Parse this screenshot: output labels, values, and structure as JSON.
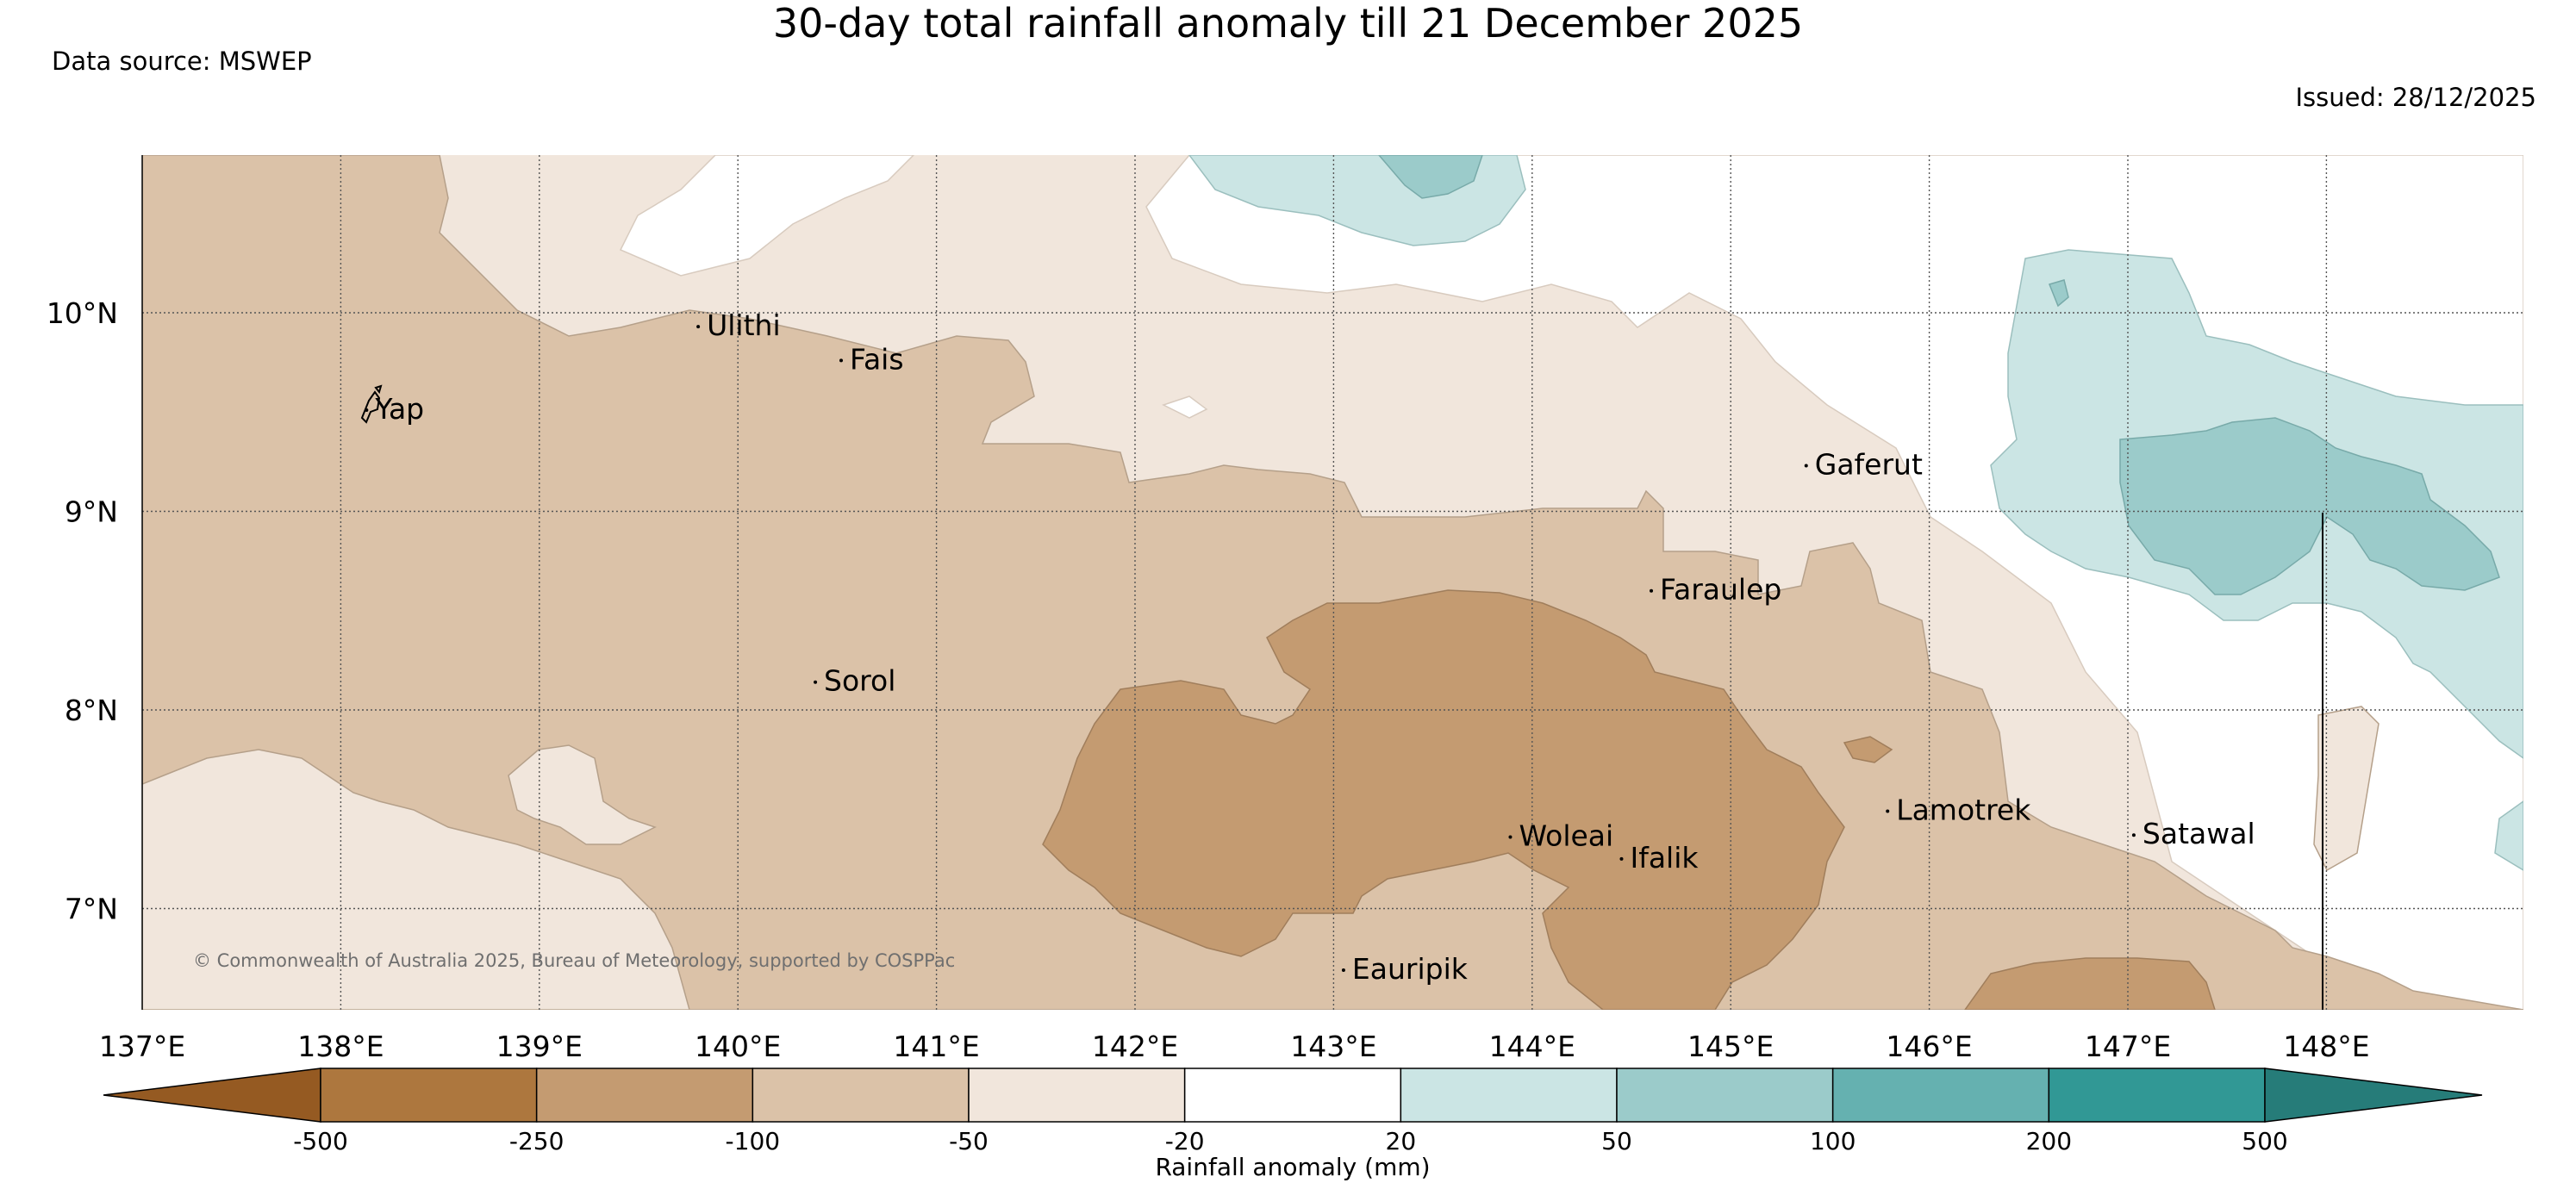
{
  "title": "30-day total rainfall anomaly till 21 December 2025",
  "data_source": "Data source: MSWEP",
  "issued": "Issued: 28/12/2025",
  "copyright": "© Commonwealth of Australia 2025, Bureau of Meteorology, supported by COSPPac",
  "lon_labels": [
    "137°E",
    "138°E",
    "139°E",
    "140°E",
    "141°E",
    "142°E",
    "143°E",
    "144°E",
    "145°E",
    "146°E",
    "147°E",
    "148°E"
  ],
  "lat_labels": [
    "10°N",
    "9°N",
    "8°N",
    "7°N"
  ],
  "places": [
    {
      "name": "Ulithi",
      "lon": 139.8,
      "lat": 9.93
    },
    {
      "name": "Fais",
      "lon": 140.52,
      "lat": 9.76
    },
    {
      "name": "Yap",
      "lon": 138.13,
      "lat": 9.51
    },
    {
      "name": "Gaferut",
      "lon": 145.38,
      "lat": 9.23
    },
    {
      "name": "Faraulep",
      "lon": 144.6,
      "lat": 8.6
    },
    {
      "name": "Sorol",
      "lon": 140.39,
      "lat": 8.14
    },
    {
      "name": "Woleai",
      "lon": 143.89,
      "lat": 7.36
    },
    {
      "name": "Ifalik",
      "lon": 144.45,
      "lat": 7.25
    },
    {
      "name": "Lamotrek",
      "lon": 145.79,
      "lat": 7.49
    },
    {
      "name": "Satawal",
      "lon": 147.03,
      "lat": 7.37
    },
    {
      "name": "Eauripik",
      "lon": 143.05,
      "lat": 6.69
    }
  ],
  "colorbar": {
    "label": "Rainfall anomaly (mm)",
    "tick_labels": [
      "-500",
      "-250",
      "-100",
      "-50",
      "-20",
      "20",
      "50",
      "100",
      "200",
      "500"
    ],
    "bins": [
      {
        "color": "#955a22"
      },
      {
        "color": "#ad773e"
      },
      {
        "color": "#c49b71"
      },
      {
        "color": "#dbc2a8"
      },
      {
        "color": "#f1e6dc"
      },
      {
        "color": "#ffffff"
      },
      {
        "color": "#cbe5e4"
      },
      {
        "color": "#9bcbca"
      },
      {
        "color": "#65b1b0"
      },
      {
        "color": "#319895"
      },
      {
        "color": "#267c79"
      }
    ]
  }
}
